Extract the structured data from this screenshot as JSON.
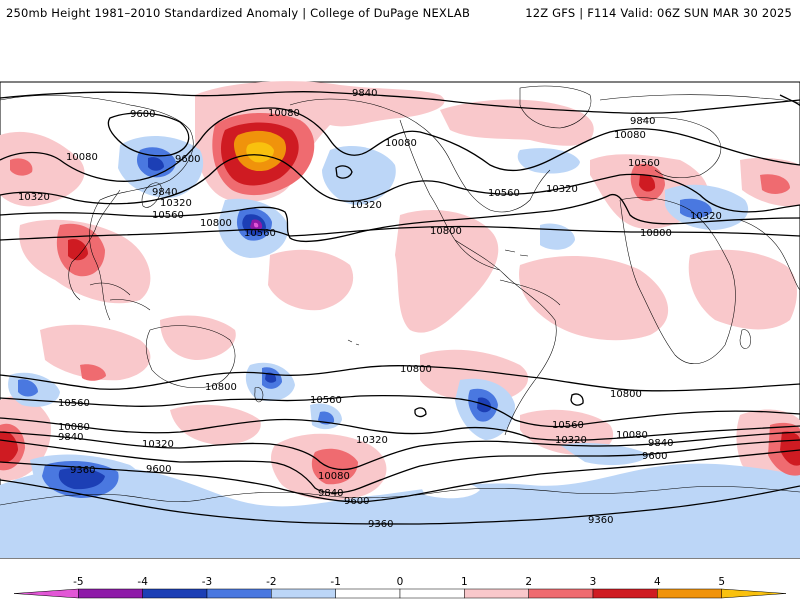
{
  "header": {
    "left_title": "250mb Height 1981–2010 Standardized Anomaly | College of DuPage NEXLAB",
    "right_title": "12Z GFS | F114 Valid: 06Z SUN MAR 30 2025"
  },
  "contour_labels": [
    {
      "text": "9840"
    },
    {
      "text": "9600"
    },
    {
      "text": "10080"
    },
    {
      "text": "9600"
    },
    {
      "text": "10080"
    },
    {
      "text": "10320"
    },
    {
      "text": "9840"
    },
    {
      "text": "10320"
    },
    {
      "text": "10560"
    },
    {
      "text": "10800"
    },
    {
      "text": "10560"
    },
    {
      "text": "10320"
    },
    {
      "text": "10080"
    },
    {
      "text": "10560"
    },
    {
      "text": "10320"
    },
    {
      "text": "10800"
    },
    {
      "text": "9840"
    },
    {
      "text": "10080"
    },
    {
      "text": "10560"
    },
    {
      "text": "10320"
    },
    {
      "text": "10800"
    },
    {
      "text": "10800"
    },
    {
      "text": "10800"
    },
    {
      "text": "10800"
    },
    {
      "text": "10560"
    },
    {
      "text": "10560"
    },
    {
      "text": "10560"
    },
    {
      "text": "10080"
    },
    {
      "text": "9840"
    },
    {
      "text": "10320"
    },
    {
      "text": "10320"
    },
    {
      "text": "10320"
    },
    {
      "text": "10080"
    },
    {
      "text": "9840"
    },
    {
      "text": "9600"
    },
    {
      "text": "9360"
    },
    {
      "text": "9600"
    },
    {
      "text": "10080"
    },
    {
      "text": "9840"
    },
    {
      "text": "9600"
    },
    {
      "text": "9360"
    },
    {
      "text": "9360"
    }
  ],
  "colorbar": {
    "tick_labels": [
      "-5",
      "-4",
      "-3",
      "-2",
      "-1",
      "0",
      "1",
      "2",
      "3",
      "4",
      "5"
    ],
    "colors": [
      "#e256d6",
      "#8e1aa8",
      "#1c3fb5",
      "#4a78e0",
      "#bcd6f7",
      "#ffffff",
      "#f9c8cb",
      "#ef6b70",
      "#cf1b22",
      "#f0930b",
      "#f9c10e"
    ]
  },
  "map_colors": {
    "ocean": "#ffffff",
    "pos1": "#f9c8cb",
    "pos2": "#ef6b70",
    "pos3": "#cf1b22",
    "pos4": "#f0930b",
    "pos5": "#f9c10e",
    "neg1": "#bcd6f7",
    "neg2": "#4a78e0",
    "neg3": "#1c3fb5",
    "neg4": "#8e1aa8",
    "neg5": "#e256d6"
  }
}
